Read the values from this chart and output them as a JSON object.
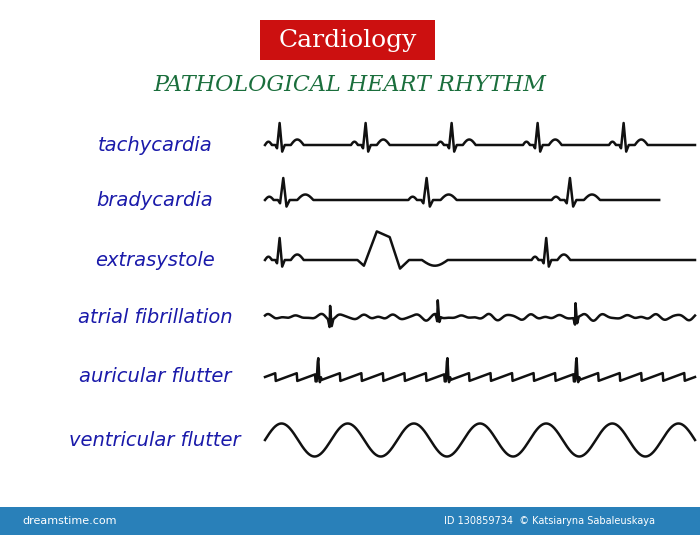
{
  "title_box_text": "Cardiology",
  "title_box_color": "#cc1010",
  "title_box_text_color": "#ffffff",
  "subtitle_text": "Pathological heart rhythm",
  "subtitle_color": "#1a6e3c",
  "label_color": "#1a1aaa",
  "ecg_color": "#111111",
  "bg_color": "#ffffff",
  "labels": [
    "tachycardia",
    "bradycardia",
    "extrasystole",
    "atrial fibrillation",
    "auricular flutter",
    "ventricular flutter"
  ],
  "label_fontsize": 14,
  "title_fontsize": 18,
  "subtitle_fontsize": 16
}
